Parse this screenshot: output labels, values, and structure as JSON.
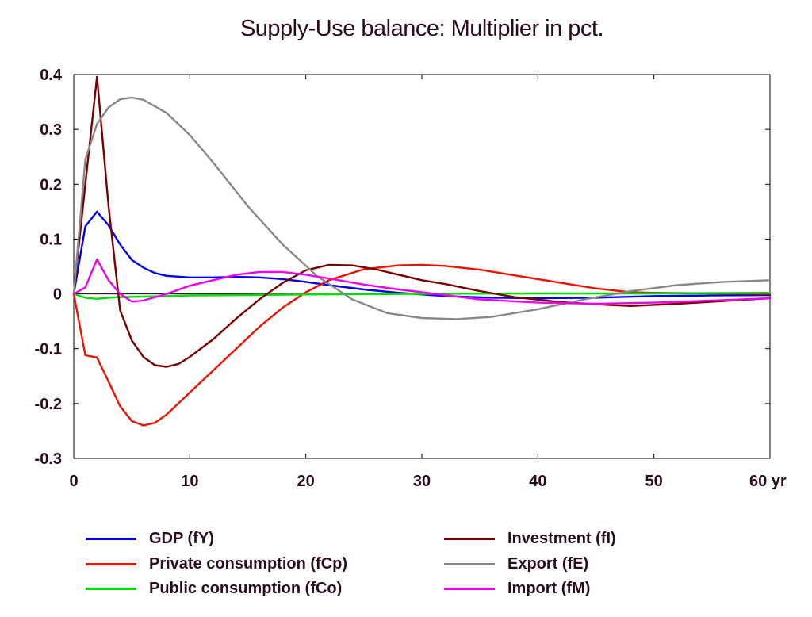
{
  "chart_data": {
    "type": "line",
    "title": "Supply-Use balance: Multiplier in pct.",
    "xlabel": "",
    "ylabel": "",
    "xlim": [
      0,
      60
    ],
    "ylim": [
      -0.3,
      0.4
    ],
    "x_ticks": [
      "0",
      "10",
      "20",
      "30",
      "40",
      "50",
      "60 yr"
    ],
    "x_tick_values": [
      0,
      10,
      20,
      30,
      40,
      50,
      60
    ],
    "y_ticks": [
      "0.4",
      "0.3",
      "0.2",
      "0.1",
      "0",
      "-0.1",
      "-0.2",
      "-0.3"
    ],
    "y_tick_values": [
      0.4,
      0.3,
      0.2,
      0.1,
      0,
      -0.1,
      -0.2,
      -0.3
    ],
    "grid": false,
    "legend_position": "bottom",
    "series": [
      {
        "name": "GDP (fY)",
        "color": "#0000ee",
        "x": [
          0,
          1,
          2,
          3,
          4,
          5,
          6,
          7,
          8,
          10,
          12,
          14,
          16,
          18,
          20,
          22,
          25,
          28,
          32,
          36,
          40,
          45,
          50,
          55,
          60
        ],
        "y": [
          0,
          0.123,
          0.15,
          0.125,
          0.09,
          0.062,
          0.048,
          0.038,
          0.033,
          0.03,
          0.03,
          0.031,
          0.03,
          0.027,
          0.022,
          0.016,
          0.008,
          0.002,
          -0.004,
          -0.007,
          -0.008,
          -0.007,
          -0.004,
          -0.003,
          -0.002
        ]
      },
      {
        "name": "Private consumption (fCp)",
        "color": "#ee1100",
        "x": [
          0,
          1,
          2,
          3,
          4,
          5,
          6,
          7,
          8,
          10,
          12,
          14,
          16,
          18,
          20,
          22,
          25,
          28,
          30,
          32,
          35,
          40,
          45,
          48,
          50,
          55,
          60
        ],
        "y": [
          0,
          -0.112,
          -0.116,
          -0.16,
          -0.205,
          -0.232,
          -0.24,
          -0.235,
          -0.22,
          -0.18,
          -0.14,
          -0.1,
          -0.06,
          -0.025,
          0.003,
          0.025,
          0.045,
          0.052,
          0.053,
          0.051,
          0.044,
          0.027,
          0.01,
          0.003,
          0.002,
          0.001,
          0
        ]
      },
      {
        "name": "Public consumption (fCo)",
        "color": "#00dd00",
        "x": [
          0,
          1,
          2,
          3,
          4,
          6,
          8,
          10,
          15,
          20,
          30,
          40,
          50,
          60
        ],
        "y": [
          0,
          -0.007,
          -0.009,
          -0.007,
          -0.006,
          -0.005,
          -0.004,
          -0.003,
          -0.002,
          -0.001,
          0,
          0.001,
          0.001,
          0.002
        ]
      },
      {
        "name": "Investment (fI)",
        "color": "#7a0000",
        "x": [
          0,
          1,
          2,
          3,
          4,
          5,
          6,
          7,
          8,
          9,
          10,
          12,
          14,
          16,
          18,
          20,
          22,
          24,
          26,
          28,
          30,
          32,
          35,
          38,
          42,
          46,
          48,
          52,
          56,
          60
        ],
        "y": [
          0,
          0.2,
          0.396,
          0.16,
          -0.03,
          -0.085,
          -0.115,
          -0.13,
          -0.133,
          -0.128,
          -0.115,
          -0.083,
          -0.045,
          -0.01,
          0.02,
          0.043,
          0.053,
          0.052,
          0.045,
          0.035,
          0.025,
          0.018,
          0.005,
          -0.006,
          -0.015,
          -0.02,
          -0.022,
          -0.018,
          -0.013,
          -0.008
        ]
      },
      {
        "name": "Export (fE)",
        "color": "#888888",
        "x": [
          0,
          1,
          2,
          3,
          4,
          5,
          6,
          8,
          10,
          12,
          15,
          18,
          21,
          24,
          27,
          30,
          33,
          36,
          40,
          44,
          48,
          52,
          56,
          60
        ],
        "y": [
          0,
          0.245,
          0.31,
          0.34,
          0.355,
          0.358,
          0.354,
          0.33,
          0.29,
          0.24,
          0.16,
          0.09,
          0.032,
          -0.01,
          -0.035,
          -0.044,
          -0.046,
          -0.042,
          -0.028,
          -0.01,
          0.005,
          0.016,
          0.022,
          0.025
        ]
      },
      {
        "name": "Import (fM)",
        "color": "#ee00ee",
        "x": [
          0,
          1,
          2,
          3,
          4,
          5,
          6,
          8,
          10,
          12,
          14,
          16,
          18,
          20,
          22,
          25,
          28,
          30,
          35,
          40,
          45,
          50,
          55,
          60
        ],
        "y": [
          0,
          0.012,
          0.063,
          0.025,
          0,
          -0.014,
          -0.012,
          0,
          0.015,
          0.025,
          0.035,
          0.04,
          0.04,
          0.035,
          0.028,
          0.017,
          0.008,
          0.003,
          -0.01,
          -0.016,
          -0.018,
          -0.016,
          -0.012,
          -0.008
        ]
      }
    ]
  }
}
